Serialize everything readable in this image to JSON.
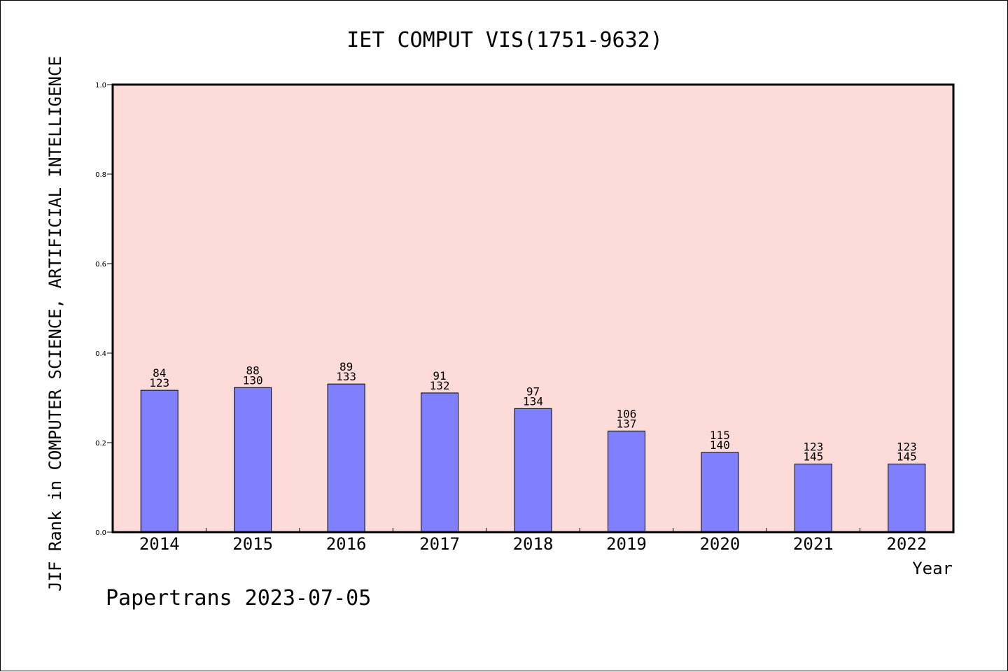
{
  "chart_data": {
    "type": "bar",
    "title": "IET COMPUT VIS(1751-9632)",
    "xlabel": "Year",
    "ylabel": "JIF Rank in COMPUTER SCIENCE, ARTIFICIAL INTELLIGENCE",
    "categories": [
      "2014",
      "2015",
      "2016",
      "2017",
      "2018",
      "2019",
      "2020",
      "2021",
      "2022"
    ],
    "series": [
      {
        "values": [
          0.317,
          0.323,
          0.331,
          0.311,
          0.276,
          0.226,
          0.178,
          0.152,
          0.152
        ]
      }
    ],
    "data_labels": [
      {
        "top": "84",
        "bottom": "123"
      },
      {
        "top": "88",
        "bottom": "130"
      },
      {
        "top": "89",
        "bottom": "133"
      },
      {
        "top": "91",
        "bottom": "132"
      },
      {
        "top": "97",
        "bottom": "134"
      },
      {
        "top": "106",
        "bottom": "137"
      },
      {
        "top": "115",
        "bottom": "140"
      },
      {
        "top": "123",
        "bottom": "145"
      },
      {
        "top": "123",
        "bottom": "145"
      }
    ],
    "ylim": [
      0,
      1.0
    ],
    "yticks": [
      "0.0",
      "0.2",
      "0.4",
      "0.6",
      "0.8",
      "1.0"
    ],
    "grid": false,
    "colors": {
      "plot_background": "#fddbd8",
      "bar_fill": "#8080ff",
      "bar_stroke": "#000000"
    }
  },
  "footer": "Papertrans 2023-07-05"
}
